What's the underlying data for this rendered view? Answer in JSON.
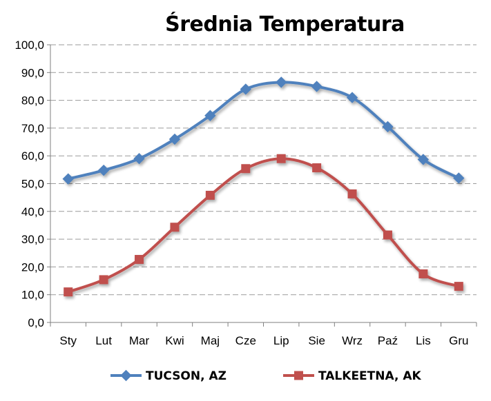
{
  "chart_data": {
    "type": "line",
    "title": "Średnia Temperatura",
    "xlabel": "",
    "ylabel": "",
    "categories": [
      "Sty",
      "Lut",
      "Mar",
      "Kwi",
      "Maj",
      "Cze",
      "Lip",
      "Sie",
      "Wrz",
      "Paź",
      "Lis",
      "Gru"
    ],
    "ylim": [
      0,
      100
    ],
    "y_ticks": [
      "0,0",
      "10,0",
      "20,0",
      "30,0",
      "40,0",
      "50,0",
      "60,0",
      "70,0",
      "80,0",
      "90,0",
      "100,0"
    ],
    "grid": true,
    "legend_position": "bottom",
    "series": [
      {
        "name": "TUCSON, AZ",
        "color": "#4f81bd",
        "marker": "diamond",
        "values": [
          51.7,
          54.8,
          59.0,
          66.0,
          74.5,
          84.0,
          86.5,
          85.0,
          81.0,
          70.5,
          58.7,
          52.0
        ]
      },
      {
        "name": "TALKEETNA, AK",
        "color": "#c0504d",
        "marker": "square",
        "values": [
          11.0,
          15.4,
          22.7,
          34.3,
          45.8,
          55.4,
          59.0,
          55.7,
          46.3,
          31.5,
          17.5,
          13.0
        ]
      }
    ]
  }
}
